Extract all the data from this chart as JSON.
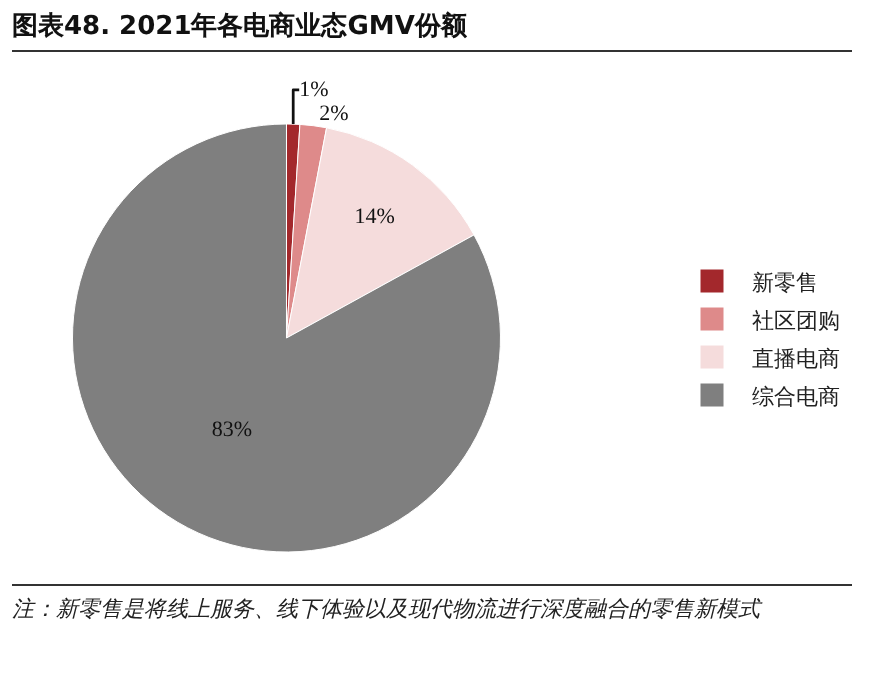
{
  "chart_data": {
    "type": "pie",
    "title": "图表48. 2021年各电商业态GMV份额",
    "categories": [
      "新零售",
      "社区团购",
      "直播电商",
      "综合电商"
    ],
    "values": [
      1,
      2,
      14,
      83
    ],
    "colors": [
      "#a3282c",
      "#de8a8a",
      "#f5dcdc",
      "#7f7f7f"
    ],
    "value_labels": [
      "1%",
      "2%",
      "14%",
      "83%"
    ],
    "legend": "right",
    "annotations": [
      "注：新零售是将线上服务、线下体验以及现代物流进行深度融合的零售新模式"
    ]
  }
}
